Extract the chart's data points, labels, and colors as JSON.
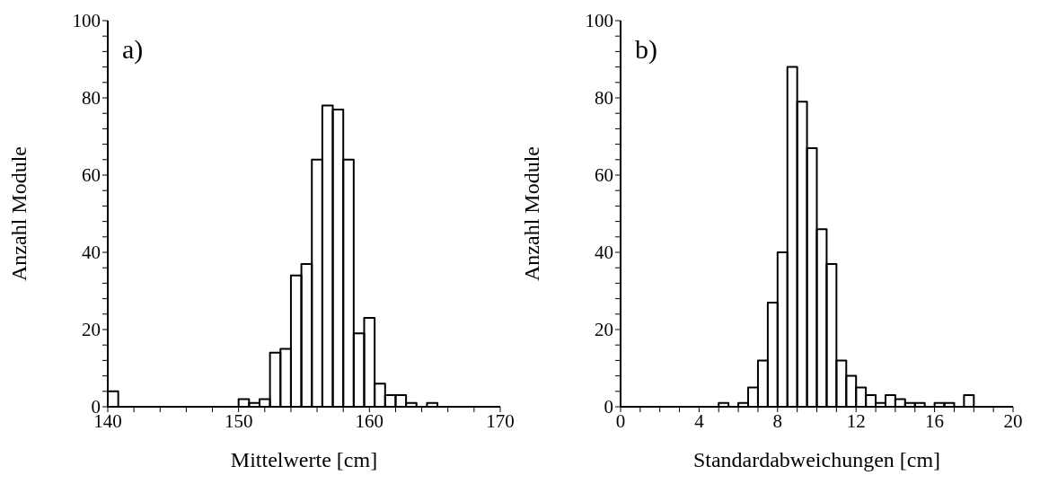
{
  "chart_data": [
    {
      "type": "histogram",
      "annotations": [
        "a)"
      ],
      "xlabel": "Mittelwerte [cm]",
      "ylabel": "Anzahl Module",
      "color": "#000000",
      "bins": [
        140,
        140.8,
        150,
        150.8,
        151.6,
        152.4,
        153.2,
        154,
        154.8,
        155.6,
        156.4,
        157.2,
        158,
        158.8,
        159.6,
        160.4,
        161.2,
        162,
        162.8,
        163.6,
        164.4,
        165.2
      ],
      "values": [
        4,
        0,
        2,
        1,
        2,
        14,
        15,
        34,
        37,
        64,
        78,
        77,
        64,
        19,
        23,
        6,
        3,
        3,
        1,
        0,
        1
      ],
      "xlim": [
        140,
        170
      ],
      "xticks": [
        140,
        {
          "value": 142,
          "label": null
        },
        {
          "value": 144,
          "label": null
        },
        {
          "value": 146,
          "label": null
        },
        {
          "value": 148,
          "label": null
        },
        150,
        {
          "value": 152,
          "label": null
        },
        {
          "value": 154,
          "label": null
        },
        {
          "value": 156,
          "label": null
        },
        {
          "value": 158,
          "label": null
        },
        160,
        {
          "value": 162,
          "label": null
        },
        {
          "value": 164,
          "label": null
        },
        {
          "value": 166,
          "label": null
        },
        {
          "value": 168,
          "label": null
        },
        170
      ],
      "ylim": [
        0,
        100
      ],
      "yticks": [
        0,
        {
          "value": 4,
          "label": null
        },
        {
          "value": 8,
          "label": null
        },
        {
          "value": 12,
          "label": null
        },
        {
          "value": 16,
          "label": null
        },
        20,
        {
          "value": 24,
          "label": null
        },
        {
          "value": 28,
          "label": null
        },
        {
          "value": 32,
          "label": null
        },
        {
          "value": 36,
          "label": null
        },
        40,
        {
          "value": 44,
          "label": null
        },
        {
          "value": 48,
          "label": null
        },
        {
          "value": 52,
          "label": null
        },
        {
          "value": 56,
          "label": null
        },
        60,
        {
          "value": 64,
          "label": null
        },
        {
          "value": 68,
          "label": null
        },
        {
          "value": 72,
          "label": null
        },
        {
          "value": 76,
          "label": null
        },
        80,
        {
          "value": 84,
          "label": null
        },
        {
          "value": 88,
          "label": null
        },
        {
          "value": 92,
          "label": null
        },
        {
          "value": 96,
          "label": null
        },
        100
      ]
    },
    {
      "type": "histogram",
      "annotations": [
        "b)"
      ],
      "xlabel": "Standardabweichungen [cm]",
      "ylabel": "Anzahl Module",
      "color": "#000000",
      "bins": [
        5,
        5.5,
        6,
        6.5,
        7,
        7.5,
        8,
        8.5,
        9,
        9.5,
        10,
        10.5,
        11,
        11.5,
        12,
        12.5,
        13,
        13.5,
        14,
        14.5,
        15,
        15.5,
        16,
        16.5,
        17,
        17.5,
        18
      ],
      "values": [
        1,
        0,
        1,
        5,
        12,
        27,
        40,
        88,
        79,
        67,
        46,
        37,
        12,
        8,
        5,
        3,
        1,
        3,
        2,
        1,
        1,
        0,
        1,
        1,
        0,
        3
      ],
      "xlim": [
        0,
        20
      ],
      "xticks": [
        0,
        {
          "value": 1,
          "label": null
        },
        {
          "value": 2,
          "label": null
        },
        {
          "value": 3,
          "label": null
        },
        4,
        {
          "value": 5,
          "label": null
        },
        {
          "value": 6,
          "label": null
        },
        {
          "value": 7,
          "label": null
        },
        8,
        {
          "value": 9,
          "label": null
        },
        {
          "value": 10,
          "label": null
        },
        {
          "value": 11,
          "label": null
        },
        12,
        {
          "value": 13,
          "label": null
        },
        {
          "value": 14,
          "label": null
        },
        {
          "value": 15,
          "label": null
        },
        16,
        {
          "value": 17,
          "label": null
        },
        {
          "value": 18,
          "label": null
        },
        {
          "value": 19,
          "label": null
        },
        20
      ],
      "ylim": [
        0,
        100
      ],
      "yticks": [
        0,
        {
          "value": 4,
          "label": null
        },
        {
          "value": 8,
          "label": null
        },
        {
          "value": 12,
          "label": null
        },
        {
          "value": 16,
          "label": null
        },
        20,
        {
          "value": 24,
          "label": null
        },
        {
          "value": 28,
          "label": null
        },
        {
          "value": 32,
          "label": null
        },
        {
          "value": 36,
          "label": null
        },
        40,
        {
          "value": 44,
          "label": null
        },
        {
          "value": 48,
          "label": null
        },
        {
          "value": 52,
          "label": null
        },
        {
          "value": 56,
          "label": null
        },
        60,
        {
          "value": 64,
          "label": null
        },
        {
          "value": 68,
          "label": null
        },
        {
          "value": 72,
          "label": null
        },
        {
          "value": 76,
          "label": null
        },
        80,
        {
          "value": 84,
          "label": null
        },
        {
          "value": 88,
          "label": null
        },
        {
          "value": 92,
          "label": null
        },
        {
          "value": 96,
          "label": null
        },
        100
      ]
    }
  ]
}
